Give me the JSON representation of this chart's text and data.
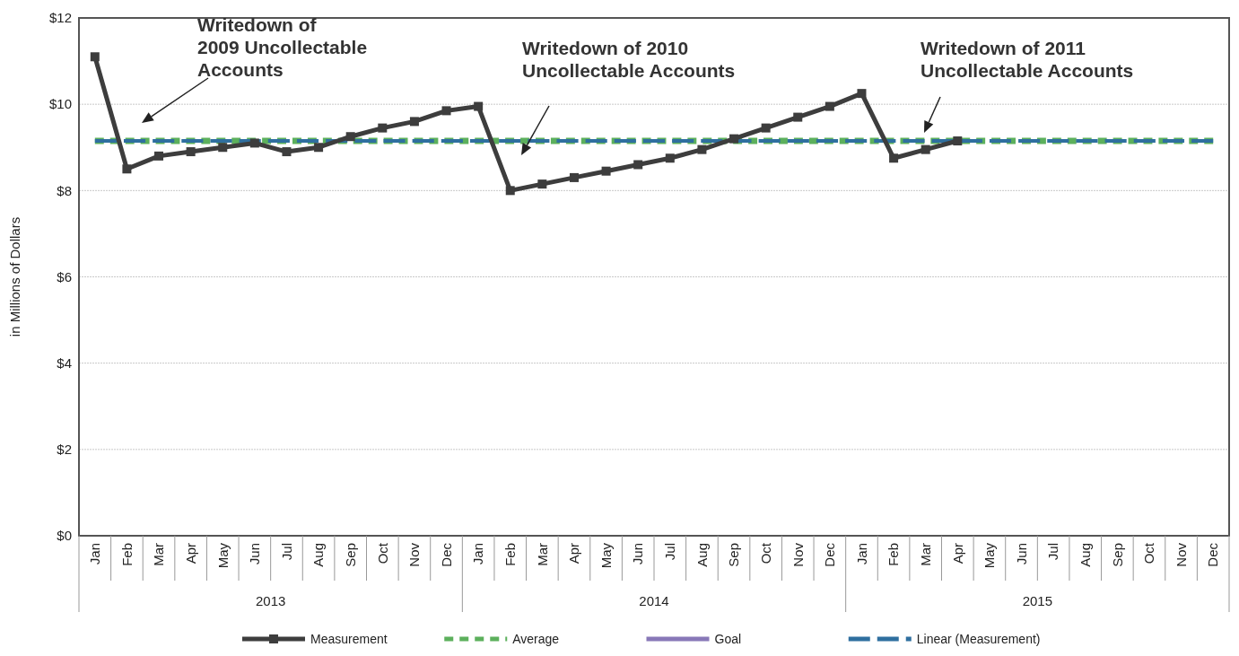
{
  "chart_data": {
    "type": "line",
    "ylabel": "in Millions of Dollars",
    "categories": [
      "Jan",
      "Feb",
      "Mar",
      "Apr",
      "May",
      "Jun",
      "Jul",
      "Aug",
      "Sep",
      "Oct",
      "Nov",
      "Dec",
      "Jan",
      "Feb",
      "Mar",
      "Apr",
      "May",
      "Jun",
      "Jul",
      "Aug",
      "Sep",
      "Oct",
      "Nov",
      "Dec",
      "Jan",
      "Feb",
      "Mar",
      "Apr",
      "May",
      "Jun",
      "Jul",
      "Aug",
      "Sep",
      "Oct",
      "Nov",
      "Dec"
    ],
    "series": [
      {
        "name": "Measurement",
        "color": "#3d3d3d",
        "marker": "square",
        "line_style": "solid",
        "values": [
          11.1,
          8.5,
          8.8,
          8.9,
          9.0,
          9.1,
          8.9,
          9.0,
          9.25,
          9.45,
          9.6,
          9.85,
          9.95,
          8.0,
          8.15,
          8.3,
          8.45,
          8.6,
          8.75,
          8.95,
          9.2,
          9.45,
          9.7,
          9.95,
          10.25,
          8.75,
          8.95,
          9.15,
          null,
          null,
          null,
          null,
          null,
          null,
          null,
          null
        ]
      },
      {
        "name": "Average",
        "color": "#5cb05c",
        "marker": "none",
        "line_style": "dashed",
        "values": [
          9.15,
          9.15,
          9.15,
          9.15,
          9.15,
          9.15,
          9.15,
          9.15,
          9.15,
          9.15,
          9.15,
          9.15,
          9.15,
          9.15,
          9.15,
          9.15,
          9.15,
          9.15,
          9.15,
          9.15,
          9.15,
          9.15,
          9.15,
          9.15,
          9.15,
          9.15,
          9.15,
          9.15,
          9.15,
          9.15,
          9.15,
          9.15,
          9.15,
          9.15,
          9.15,
          9.15
        ]
      },
      {
        "name": "Goal",
        "color": "#8878b8",
        "marker": "none",
        "line_style": "solid",
        "values": [
          null,
          null,
          null,
          null,
          null,
          null,
          null,
          null,
          null,
          null,
          null,
          null,
          null,
          null,
          null,
          null,
          null,
          null,
          null,
          null,
          null,
          null,
          null,
          null,
          null,
          null,
          null,
          null,
          null,
          null,
          null,
          null,
          null,
          null,
          null,
          null
        ]
      },
      {
        "name": "Linear (Measurement)",
        "color": "#2f6f9f",
        "marker": "none",
        "line_style": "longdash",
        "values": [
          9.15,
          9.15,
          9.15,
          9.15,
          9.15,
          9.15,
          9.15,
          9.15,
          9.15,
          9.15,
          9.15,
          9.15,
          9.15,
          9.15,
          9.15,
          9.15,
          9.15,
          9.15,
          9.15,
          9.15,
          9.15,
          9.15,
          9.15,
          9.15,
          9.15,
          9.15,
          9.15,
          9.15,
          9.15,
          9.15,
          9.15,
          9.15,
          9.15,
          9.15,
          9.15,
          9.15
        ]
      }
    ],
    "ylim": [
      0,
      12
    ],
    "yticks": [
      {
        "value": 0,
        "label": "$0"
      },
      {
        "value": 2,
        "label": "$2"
      },
      {
        "value": 4,
        "label": "$4"
      },
      {
        "value": 6,
        "label": "$6"
      },
      {
        "value": 8,
        "label": "$8"
      },
      {
        "value": 10,
        "label": "$10"
      },
      {
        "value": 12,
        "label": "$12"
      }
    ],
    "grid": "y",
    "legend": "bottom",
    "annotations": [
      "Writedown of 2009 Uncollectable Accounts",
      "Writedown of 2010 Uncollectable Accounts",
      "Writedown of 2011 Uncollectable Accounts",
      "2013",
      "2014",
      "2015"
    ]
  }
}
